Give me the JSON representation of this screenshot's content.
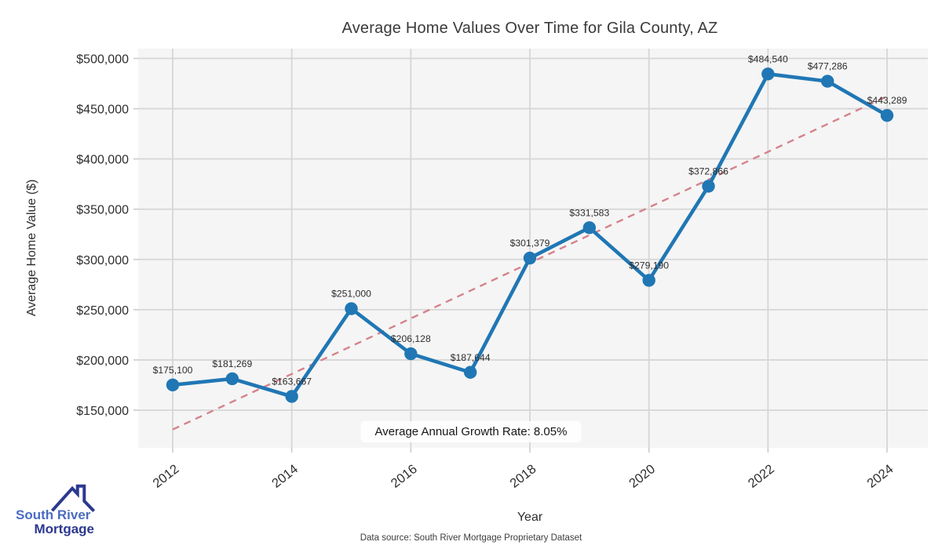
{
  "chart_data": {
    "type": "line",
    "title": "Average Home Values Over Time for Gila County, AZ",
    "xlabel": "Year",
    "ylabel": "Average Home Value ($)",
    "x": [
      2012,
      2013,
      2014,
      2015,
      2016,
      2017,
      2018,
      2019,
      2020,
      2021,
      2022,
      2023,
      2024
    ],
    "values": [
      175100,
      181269,
      163667,
      251000,
      206128,
      187644,
      301379,
      331583,
      279190,
      372866,
      484540,
      477286,
      443289
    ],
    "point_labels": [
      "$175,100",
      "$181,269",
      "$163,667",
      "$251,000",
      "$206,128",
      "$187,644",
      "$301,379",
      "$331,583",
      "$279,190",
      "$372,866",
      "$484,540",
      "$477,286",
      "$443,289"
    ],
    "xticks": [
      2012,
      2014,
      2016,
      2018,
      2020,
      2022,
      2024
    ],
    "yticks": [
      150000,
      200000,
      250000,
      300000,
      350000,
      400000,
      450000,
      500000
    ],
    "ytick_labels": [
      "$150,000",
      "$200,000",
      "$250,000",
      "$300,000",
      "$350,000",
      "$400,000",
      "$450,000",
      "$500,000"
    ],
    "ylim": [
      112500,
      510000
    ],
    "xlim": [
      2011.4,
      2024.7
    ],
    "grid": true,
    "legend": false,
    "trendline": {
      "style": "dashed",
      "x": [
        2012,
        2024
      ],
      "y": [
        130766,
        462302
      ]
    },
    "annotation": "Average Annual Growth Rate: 8.05%",
    "colors": {
      "series": "#2077b4",
      "trend": "#d5838b",
      "plot_background": "#f5f5f5",
      "gridline": "#d6d6d6",
      "tick_mark": "#c9c9c9",
      "label_text": "#2d2d2d",
      "tick_text": "#2f2f2f"
    }
  },
  "footer": {
    "text": "Data source: South River Mortgage Proprietary Dataset"
  },
  "logo": {
    "line1": "South River",
    "line2": "Mortgage",
    "accent": "#2b3990"
  }
}
